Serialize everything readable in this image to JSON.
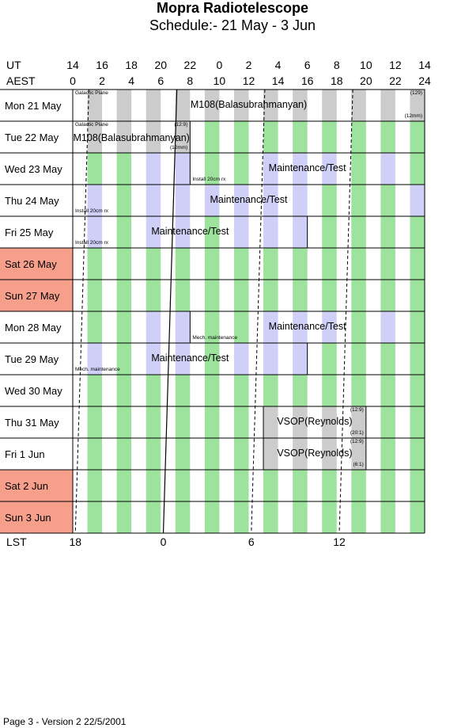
{
  "header": {
    "title": "Mopra Radiotelescope",
    "subtitle": "Schedule:- 21 May - 3  Jun"
  },
  "axes": {
    "ut_label": "UT",
    "aest_label": "AEST",
    "lst_label": "LST",
    "ut_ticks": [
      "14",
      "16",
      "18",
      "20",
      "22",
      "0",
      "2",
      "4",
      "6",
      "8",
      "10",
      "12",
      "14"
    ],
    "aest_ticks": [
      "0",
      "2",
      "4",
      "6",
      "8",
      "10",
      "12",
      "14",
      "16",
      "18",
      "20",
      "22",
      "24"
    ],
    "lst_ticks": [
      {
        "label": "18",
        "aest": 1.1
      },
      {
        "label": "0",
        "aest": 7.1
      },
      {
        "label": "6",
        "aest": 13.1
      },
      {
        "label": "12",
        "aest": 19.1
      }
    ]
  },
  "colors": {
    "weekend": "#f6a08c",
    "green": "#9de39d",
    "blue": "#cfcff7",
    "gray": "#cccccc"
  },
  "days": [
    {
      "label": "Mon  21 May",
      "weekend": false,
      "stripe": "gray",
      "lst0": 1.1
    },
    {
      "label": "Tue  22 May",
      "weekend": false,
      "stripe": "mixA",
      "lst0": 1.03
    },
    {
      "label": "Wed  23 May",
      "weekend": false,
      "stripe": "mixB",
      "lst0": 0.97
    },
    {
      "label": "Thu  24 May",
      "weekend": false,
      "stripe": "mixC",
      "lst0": 0.9
    },
    {
      "label": "Fri    25 May",
      "weekend": false,
      "stripe": "mixD",
      "lst0": 0.84
    },
    {
      "label": "Sat    26 May",
      "weekend": true,
      "stripe": "green",
      "lst0": 0.77
    },
    {
      "label": "Sun  27 May",
      "weekend": true,
      "stripe": "green",
      "lst0": 0.71
    },
    {
      "label": "Mon  28 May",
      "weekend": false,
      "stripe": "mixB",
      "lst0": 0.64
    },
    {
      "label": "Tue  29 May",
      "weekend": false,
      "stripe": "mixD",
      "lst0": 0.58
    },
    {
      "label": "Wed  30 May",
      "weekend": false,
      "stripe": "green",
      "lst0": 0.51
    },
    {
      "label": "Thu  31 May",
      "weekend": false,
      "stripe": "mixE",
      "lst0": 0.45
    },
    {
      "label": "Fri      1  Jun",
      "weekend": false,
      "stripe": "mixE",
      "lst0": 0.38
    },
    {
      "label": "Sat      2  Jun",
      "weekend": true,
      "stripe": "green",
      "lst0": 0.32
    },
    {
      "label": "Sun    3  Jun",
      "weekend": true,
      "stripe": "green",
      "lst0": 0.25
    }
  ],
  "blocks": [
    {
      "row": 0,
      "start": 0,
      "end": 24,
      "fill": "gray",
      "label": "M108(Balasubrahmanyan)",
      "notes": [
        {
          "text": "Galactic Plane",
          "pos": "tl"
        },
        {
          "text": "(129)",
          "pos": "tr"
        },
        {
          "text": "(12mm)",
          "pos": "br"
        }
      ]
    },
    {
      "row": 1,
      "start": 0,
      "end": 8,
      "fill": "gray",
      "label": "M108(Balasubrahmanyan)",
      "notes": [
        {
          "text": "Galactic Plane",
          "pos": "tl"
        },
        {
          "text": "(12:9)",
          "pos": "tr"
        },
        {
          "text": "(12mm)",
          "pos": "br"
        }
      ]
    },
    {
      "row": 2,
      "start": 8,
      "end": 24,
      "fill": "blue",
      "label": "Maintenance/Test",
      "notes": [
        {
          "text": "Install 20cm rx",
          "pos": "bl"
        }
      ]
    },
    {
      "row": 3,
      "start": 0,
      "end": 24,
      "fill": "blue",
      "label": "Maintenance/Test",
      "notes": [
        {
          "text": "Install 20cm rx",
          "pos": "bl"
        }
      ]
    },
    {
      "row": 4,
      "start": 0,
      "end": 16,
      "fill": "blue",
      "label": "Maintenance/Test",
      "notes": [
        {
          "text": "Install 20cm rx",
          "pos": "bl"
        }
      ]
    },
    {
      "row": 7,
      "start": 8,
      "end": 24,
      "fill": "blue",
      "label": "Maintenance/Test",
      "notes": [
        {
          "text": "Mech. maintenance",
          "pos": "bl"
        }
      ]
    },
    {
      "row": 8,
      "start": 0,
      "end": 16,
      "fill": "blue",
      "label": "Maintenance/Test",
      "notes": [
        {
          "text": "Mech. maintenance",
          "pos": "bl"
        }
      ]
    },
    {
      "row": 10,
      "start": 13,
      "end": 20,
      "fill": "gray",
      "label": "VSOP(Reynolds)",
      "notes": [
        {
          "text": "(12:9)",
          "pos": "tr"
        },
        {
          "text": "(20:1)",
          "pos": "br"
        }
      ]
    },
    {
      "row": 11,
      "start": 13,
      "end": 20,
      "fill": "gray",
      "label": "VSOP(Reynolds)",
      "notes": [
        {
          "text": "(12:9)",
          "pos": "tr"
        },
        {
          "text": "(6:1)",
          "pos": "br"
        }
      ]
    }
  ],
  "footer": "Page 3 - Version 2  22/5/2001"
}
